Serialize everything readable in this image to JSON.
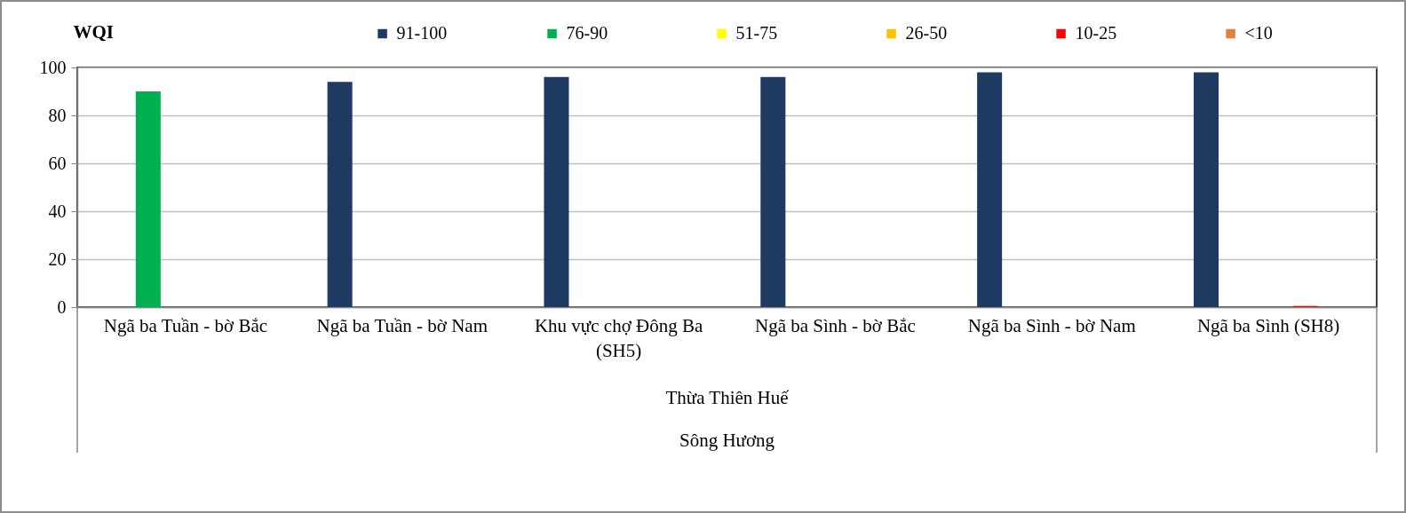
{
  "chart_data": {
    "type": "bar",
    "ylabel": "WQI",
    "categories": [
      "Ngã ba Tuần - bờ Bắc",
      "Ngã ba Tuần - bờ Nam",
      "Khu vực chợ Đông Ba (SH5)",
      "Ngã ba Sình - bờ Bắc",
      "Ngã ba Sình - bờ Nam",
      "Ngã ba Sình (SH8)"
    ],
    "series": [
      {
        "name": "91-100",
        "color": "#1f3a60",
        "values": [
          null,
          94,
          96,
          96,
          98,
          98
        ]
      },
      {
        "name": "76-90",
        "color": "#00b050",
        "values": [
          90,
          null,
          null,
          null,
          null,
          null
        ]
      },
      {
        "name": "51-75",
        "color": "#ffff00",
        "values": [
          null,
          null,
          null,
          null,
          null,
          null
        ]
      },
      {
        "name": "26-50",
        "color": "#ffc000",
        "values": [
          null,
          null,
          null,
          null,
          null,
          null
        ]
      },
      {
        "name": "10-25",
        "color": "#ff0000",
        "values": [
          null,
          null,
          null,
          null,
          null,
          0.5
        ]
      },
      {
        "name": "<10",
        "color": "#e0823d",
        "values": [
          null,
          null,
          null,
          null,
          null,
          null
        ]
      }
    ],
    "ylim": [
      0,
      100
    ],
    "yticks": [
      0,
      20,
      40,
      60,
      80,
      100
    ],
    "grid": "y",
    "legend": "top",
    "annotations": [
      "Thừa Thiên Huế",
      "Sông Hương"
    ]
  }
}
